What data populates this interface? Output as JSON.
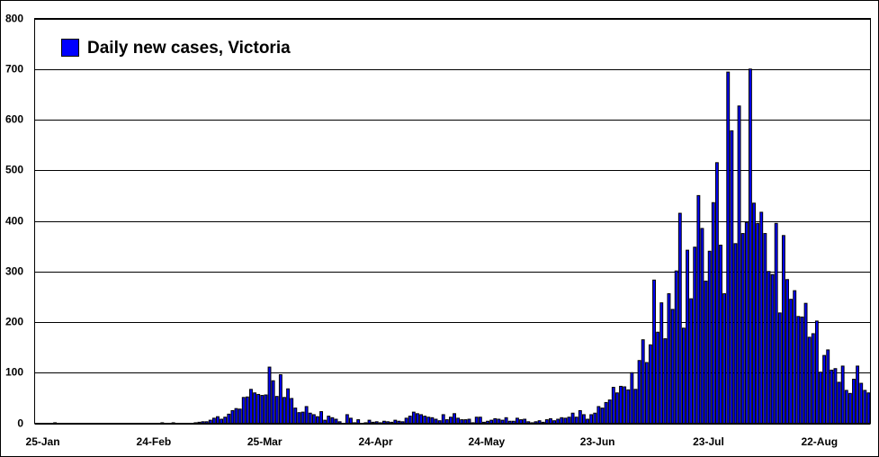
{
  "chart_data": {
    "type": "bar",
    "legend": "Daily new cases, Victoria",
    "color": "#0000ff",
    "categories": [
      "25-Jan",
      null,
      null,
      null,
      null,
      null,
      null,
      null,
      null,
      null,
      null,
      null,
      null,
      null,
      null,
      null,
      null,
      null,
      null,
      null,
      null,
      null,
      null,
      null,
      null,
      null,
      null,
      null,
      null,
      null,
      "24-Feb",
      null,
      null,
      null,
      null,
      null,
      null,
      null,
      null,
      null,
      null,
      null,
      null,
      null,
      null,
      null,
      null,
      null,
      null,
      null,
      null,
      null,
      null,
      null,
      null,
      null,
      null,
      null,
      null,
      null,
      "25-Mar",
      null,
      null,
      null,
      null,
      null,
      null,
      null,
      null,
      null,
      null,
      null,
      null,
      null,
      null,
      null,
      null,
      null,
      null,
      null,
      null,
      null,
      null,
      null,
      null,
      null,
      null,
      null,
      null,
      null,
      "24-Apr",
      null,
      null,
      null,
      null,
      null,
      null,
      null,
      null,
      null,
      null,
      null,
      null,
      null,
      null,
      null,
      null,
      null,
      null,
      null,
      null,
      null,
      null,
      null,
      null,
      null,
      null,
      null,
      null,
      null,
      "24-May",
      null,
      null,
      null,
      null,
      null,
      null,
      null,
      null,
      null,
      null,
      null,
      null,
      null,
      null,
      null,
      null,
      null,
      null,
      null,
      null,
      null,
      null,
      null,
      null,
      null,
      null,
      null,
      null,
      null,
      "23-Jun",
      null,
      null,
      null,
      null,
      null,
      null,
      null,
      null,
      null,
      null,
      null,
      null,
      null,
      null,
      null,
      null,
      null,
      null,
      null,
      null,
      null,
      null,
      null,
      null,
      null,
      null,
      null,
      null,
      null,
      "23-Jul",
      null,
      null,
      null,
      null,
      null,
      null,
      null,
      null,
      null,
      null,
      null,
      null,
      null,
      null,
      null,
      null,
      null,
      null,
      null,
      null,
      null,
      null,
      null,
      null,
      null,
      null,
      null,
      null,
      null,
      "22-Aug",
      null,
      null,
      null,
      null,
      null,
      null,
      null,
      null,
      null,
      null,
      null,
      null,
      null,
      null,
      null
    ],
    "values": [
      0,
      0,
      0,
      0,
      0,
      1,
      0,
      0,
      0,
      0,
      0,
      0,
      0,
      0,
      0,
      0,
      0,
      0,
      0,
      0,
      0,
      0,
      0,
      0,
      0,
      0,
      0,
      0,
      0,
      0,
      0,
      0,
      0,
      0,
      1,
      0,
      0,
      1,
      0,
      0,
      0,
      0,
      0,
      1,
      2,
      3,
      3,
      6,
      10,
      13,
      8,
      12,
      18,
      25,
      29,
      28,
      51,
      52,
      67,
      60,
      57,
      55,
      56,
      111,
      84,
      53,
      96,
      51,
      68,
      49,
      30,
      21,
      22,
      33,
      20,
      17,
      13,
      23,
      6,
      14,
      11,
      8,
      3,
      0,
      17,
      10,
      1,
      7,
      0,
      1,
      6,
      2,
      3,
      1,
      4,
      3,
      2,
      6,
      4,
      3,
      10,
      14,
      22,
      19,
      17,
      14,
      12,
      11,
      8,
      5,
      17,
      7,
      12,
      19,
      10,
      7,
      7,
      8,
      1,
      12,
      12,
      2,
      4,
      6,
      9,
      8,
      6,
      11,
      4,
      4,
      10,
      7,
      8,
      3,
      1,
      3,
      5,
      2,
      7,
      9,
      5,
      8,
      11,
      10,
      12,
      20,
      12,
      25,
      17,
      8,
      17,
      20,
      33,
      30,
      41,
      46,
      71,
      60,
      73,
      72,
      66,
      100,
      67,
      124,
      165,
      120,
      155,
      283,
      180,
      238,
      167,
      256,
      225,
      301,
      415,
      188,
      342,
      246,
      348,
      450,
      385,
      281,
      340,
      436,
      515,
      352,
      256,
      694,
      578,
      355,
      627,
      375,
      397,
      700,
      435,
      395,
      417,
      375,
      300,
      294,
      395,
      218,
      371,
      284,
      245,
      262,
      211,
      210,
      237,
      170,
      177,
      202,
      101,
      134,
      145,
      105,
      108,
      81,
      113,
      65,
      59,
      87,
      113,
      79,
      65,
      60
    ],
    "ylim": [
      0,
      800
    ],
    "yticks": [
      0,
      100,
      200,
      300,
      400,
      500,
      600,
      700,
      800
    ],
    "grid": true
  }
}
